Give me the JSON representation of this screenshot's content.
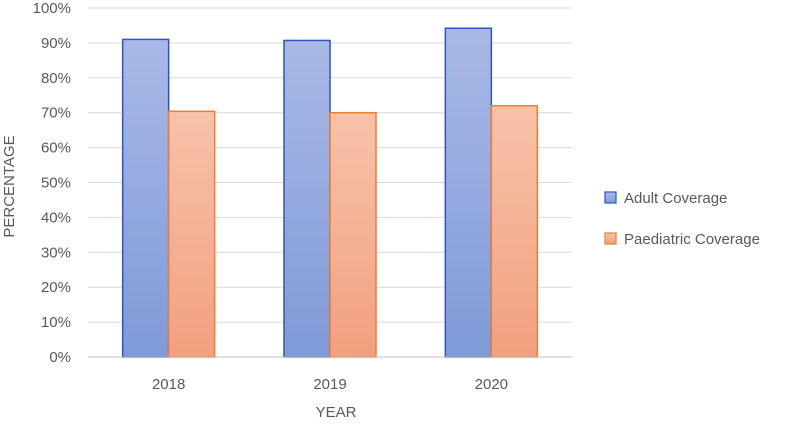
{
  "chart_data": {
    "type": "bar",
    "categories": [
      "2018",
      "2019",
      "2020"
    ],
    "series": [
      {
        "name": "Adult Coverage",
        "values": [
          91,
          90.7,
          94.2
        ]
      },
      {
        "name": "Paediatric Coverage",
        "values": [
          70.4,
          70.0,
          72.0
        ]
      }
    ],
    "xlabel": "YEAR",
    "ylabel": "PERCENTAGE",
    "ylim": [
      0,
      100
    ],
    "y_tick_step": 10,
    "y_tick_format": "percent",
    "grid": true,
    "legend_position": "right",
    "colors": {
      "series_fill_top": [
        "#a9b9e6",
        "#f7c2a9"
      ],
      "series_fill_bottom": [
        "#7f9ad8",
        "#f2a07f"
      ],
      "series_stroke": [
        "#2f55c2",
        "#ec7d31"
      ]
    }
  }
}
